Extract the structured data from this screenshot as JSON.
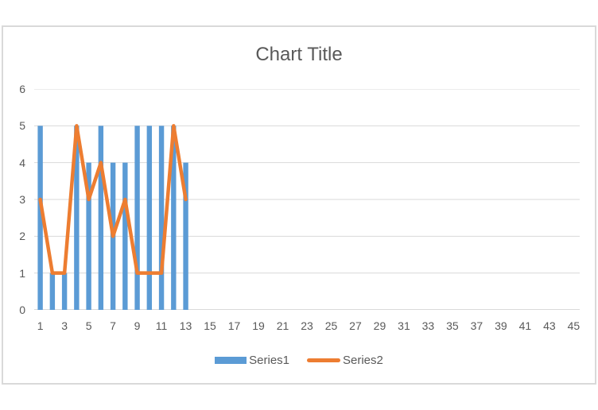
{
  "chart_data": {
    "type": "combo bar+line",
    "title": "Chart Title",
    "n_categories": 45,
    "x_tick_labels": [
      "1",
      "3",
      "5",
      "7",
      "9",
      "11",
      "13",
      "15",
      "17",
      "19",
      "21",
      "23",
      "25",
      "27",
      "29",
      "31",
      "33",
      "35",
      "37",
      "39",
      "41",
      "43",
      "45"
    ],
    "y_ticks": [
      0,
      1,
      2,
      3,
      4,
      5,
      6
    ],
    "ylim": [
      0,
      6
    ],
    "grid": "horizontal",
    "legend_position": "bottom",
    "series": [
      {
        "name": "Series1",
        "type": "bar",
        "color": "#5B9BD5",
        "x": [
          1,
          2,
          3,
          4,
          5,
          6,
          7,
          8,
          9,
          10,
          11,
          12,
          13
        ],
        "values": [
          5,
          1,
          1,
          5,
          4,
          5,
          4,
          4,
          5,
          5,
          5,
          5,
          4
        ]
      },
      {
        "name": "Series2",
        "type": "line",
        "color": "#ED7D31",
        "x": [
          1,
          2,
          3,
          4,
          5,
          6,
          7,
          8,
          9,
          10,
          11,
          12,
          13
        ],
        "values": [
          3,
          1,
          1,
          5,
          3,
          4,
          2,
          3,
          1,
          1,
          1,
          5,
          3
        ]
      }
    ],
    "colors": {
      "gridline": "#D9D9D9",
      "axis_line": "#D9D9D9",
      "border": "#D9D9D9",
      "text": "#595959",
      "background": "#FFFFFF"
    }
  }
}
